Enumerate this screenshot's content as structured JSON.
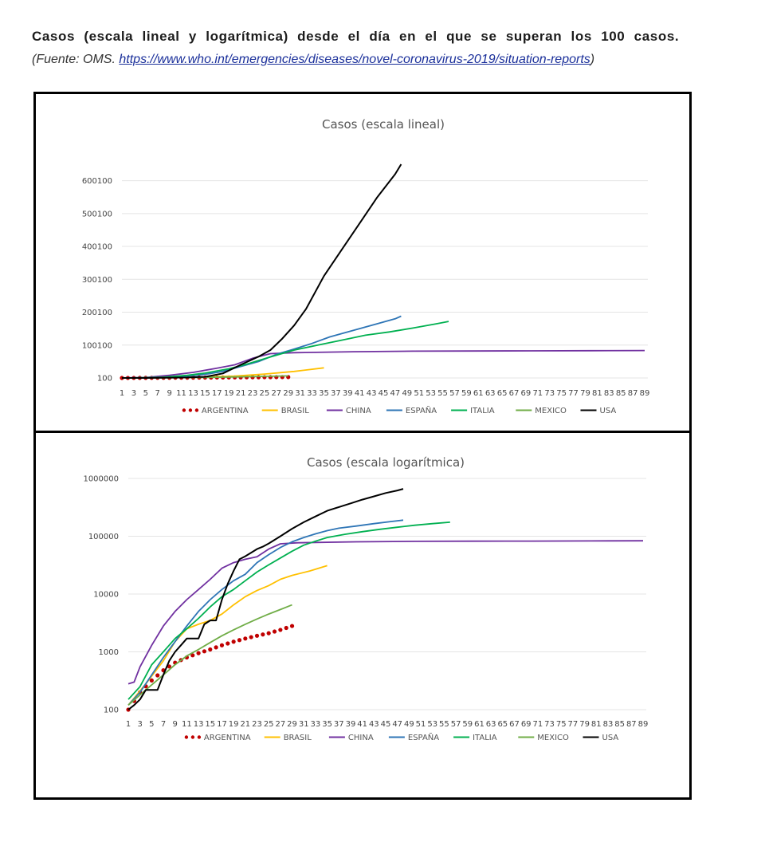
{
  "caption": {
    "title": "Casos (escala lineal y logarítmica) desde el día en el que se superan los 100 casos.",
    "source_prefix": "(Fuente: OMS. ",
    "source_link": "https://www.who.int/emergencies/diseases/novel-coronavirus-2019/situation-reports",
    "source_suffix": ")"
  },
  "colors": {
    "ARGENTINA": "#c00000",
    "BRASIL": "#ffc000",
    "CHINA": "#7030a0",
    "ESPAÑA": "#2e75b6",
    "ITALIA": "#00b050",
    "MEXICO": "#70ad47",
    "USA": "#000000"
  },
  "chart_data": [
    {
      "type": "line",
      "title": "Casos (escala lineal)",
      "x_ticks": [
        "1",
        "3",
        "5",
        "7",
        "9",
        "11",
        "13",
        "15",
        "17",
        "19",
        "21",
        "23",
        "25",
        "27",
        "29",
        "31",
        "33",
        "35",
        "37",
        "39",
        "41",
        "43",
        "45",
        "47",
        "49",
        "51",
        "53",
        "55",
        "57",
        "59",
        "61",
        "63",
        "65",
        "67",
        "69",
        "71",
        "73",
        "75",
        "77",
        "79",
        "81",
        "83",
        "85",
        "87",
        "89"
      ],
      "y_ticks": [
        "100",
        "100100",
        "200100",
        "300100",
        "400100",
        "500100",
        "600100"
      ],
      "y_tick_values": [
        100,
        100100,
        200100,
        300100,
        400100,
        500100,
        600100
      ],
      "ylim": [
        100,
        650000
      ],
      "xlim": [
        1,
        89
      ],
      "grid": true,
      "legend_position": "bottom",
      "series": [
        {
          "name": "ARGENTINA",
          "dashed": true,
          "points": [
            [
              1,
              100
            ],
            [
              10,
              800
            ],
            [
              15,
              1200
            ],
            [
              20,
              1800
            ],
            [
              25,
              2400
            ],
            [
              29,
              2800
            ]
          ]
        },
        {
          "name": "BRASIL",
          "points": [
            [
              1,
              120
            ],
            [
              10,
              1500
            ],
            [
              15,
              3000
            ],
            [
              20,
              6000
            ],
            [
              25,
              12000
            ],
            [
              30,
              20000
            ],
            [
              35,
              31000
            ]
          ]
        },
        {
          "name": "CHINA",
          "points": [
            [
              1,
              280
            ],
            [
              5,
              1500
            ],
            [
              9,
              8000
            ],
            [
              13,
              17000
            ],
            [
              17,
              30000
            ],
            [
              20,
              40000
            ],
            [
              23,
              60000
            ],
            [
              26,
              74000
            ],
            [
              30,
              77000
            ],
            [
              40,
              80000
            ],
            [
              50,
              81500
            ],
            [
              60,
              82000
            ],
            [
              70,
              82500
            ],
            [
              80,
              83000
            ],
            [
              89,
              83500
            ]
          ]
        },
        {
          "name": "ESPAÑA",
          "points": [
            [
              1,
              120
            ],
            [
              8,
              1600
            ],
            [
              12,
              6000
            ],
            [
              15,
              11000
            ],
            [
              18,
              20000
            ],
            [
              21,
              35000
            ],
            [
              24,
              50000
            ],
            [
              27,
              72000
            ],
            [
              30,
              88000
            ],
            [
              33,
              105000
            ],
            [
              36,
              125000
            ],
            [
              40,
              145000
            ],
            [
              44,
              165000
            ],
            [
              47,
              180000
            ],
            [
              48,
              188000
            ]
          ]
        },
        {
          "name": "ITALIA",
          "points": [
            [
              1,
              150
            ],
            [
              5,
              900
            ],
            [
              8,
              2500
            ],
            [
              12,
              8000
            ],
            [
              15,
              15000
            ],
            [
              19,
              28000
            ],
            [
              22,
              42000
            ],
            [
              26,
              64000
            ],
            [
              30,
              85000
            ],
            [
              34,
              100000
            ],
            [
              38,
              115000
            ],
            [
              42,
              130000
            ],
            [
              46,
              140000
            ],
            [
              50,
              152000
            ],
            [
              54,
              165000
            ],
            [
              56,
              172000
            ]
          ]
        },
        {
          "name": "MEXICO",
          "points": [
            [
              1,
              120
            ],
            [
              8,
              600
            ],
            [
              12,
              1200
            ],
            [
              16,
              2000
            ],
            [
              20,
              3200
            ],
            [
              25,
              5000
            ],
            [
              29,
              6500
            ]
          ]
        },
        {
          "name": "USA",
          "points": [
            [
              1,
              100
            ],
            [
              5,
              200
            ],
            [
              8,
              500
            ],
            [
              12,
              1600
            ],
            [
              15,
              3500
            ],
            [
              18,
              14000
            ],
            [
              21,
              40000
            ],
            [
              24,
              65000
            ],
            [
              26,
              85000
            ],
            [
              28,
              120000
            ],
            [
              30,
              160000
            ],
            [
              32,
              210000
            ],
            [
              35,
              310000
            ],
            [
              38,
              390000
            ],
            [
              41,
              470000
            ],
            [
              44,
              550000
            ],
            [
              47,
              620000
            ],
            [
              48,
              650000
            ]
          ]
        }
      ]
    },
    {
      "type": "line",
      "title": "Casos (escala logarítmica)",
      "x_ticks": [
        "1",
        "3",
        "5",
        "7",
        "9",
        "11",
        "13",
        "15",
        "17",
        "19",
        "21",
        "23",
        "25",
        "27",
        "29",
        "31",
        "33",
        "35",
        "37",
        "39",
        "41",
        "43",
        "45",
        "47",
        "49",
        "51",
        "53",
        "55",
        "57",
        "59",
        "61",
        "63",
        "65",
        "67",
        "69",
        "71",
        "73",
        "75",
        "77",
        "79",
        "81",
        "83",
        "85",
        "87",
        "89"
      ],
      "y_ticks": [
        "100",
        "1000",
        "10000",
        "100000",
        "1000000"
      ],
      "y_tick_values": [
        100,
        1000,
        10000,
        100000,
        1000000
      ],
      "y_scale": "log",
      "ylim": [
        100,
        1000000
      ],
      "xlim": [
        1,
        89
      ],
      "grid": true,
      "legend_position": "bottom",
      "series": [
        {
          "name": "ARGENTINA",
          "dashed": true,
          "points": [
            [
              1,
              100
            ],
            [
              3,
              200
            ],
            [
              5,
              320
            ],
            [
              7,
              480
            ],
            [
              9,
              650
            ],
            [
              11,
              800
            ],
            [
              13,
              950
            ],
            [
              15,
              1100
            ],
            [
              17,
              1300
            ],
            [
              19,
              1500
            ],
            [
              21,
              1700
            ],
            [
              23,
              1900
            ],
            [
              25,
              2100
            ],
            [
              27,
              2400
            ],
            [
              29,
              2800
            ]
          ]
        },
        {
          "name": "BRASIL",
          "points": [
            [
              1,
              120
            ],
            [
              4,
              280
            ],
            [
              7,
              700
            ],
            [
              9,
              1500
            ],
            [
              11,
              2500
            ],
            [
              13,
              3000
            ],
            [
              15,
              3500
            ],
            [
              17,
              4500
            ],
            [
              19,
              6500
            ],
            [
              21,
              9000
            ],
            [
              23,
              11500
            ],
            [
              25,
              14000
            ],
            [
              27,
              18000
            ],
            [
              29,
              21000
            ],
            [
              32,
              25000
            ],
            [
              35,
              31000
            ]
          ]
        },
        {
          "name": "CHINA",
          "points": [
            [
              1,
              280
            ],
            [
              2,
              300
            ],
            [
              3,
              550
            ],
            [
              5,
              1300
            ],
            [
              7,
              2800
            ],
            [
              9,
              5000
            ],
            [
              11,
              8000
            ],
            [
              13,
              12000
            ],
            [
              15,
              18000
            ],
            [
              17,
              28000
            ],
            [
              19,
              35000
            ],
            [
              21,
              40000
            ],
            [
              23,
              44000
            ],
            [
              25,
              60000
            ],
            [
              27,
              74000
            ],
            [
              30,
              77000
            ],
            [
              40,
              80000
            ],
            [
              50,
              81500
            ],
            [
              60,
              82000
            ],
            [
              70,
              82500
            ],
            [
              80,
              83000
            ],
            [
              89,
              83500
            ]
          ]
        },
        {
          "name": "ESPAÑA",
          "points": [
            [
              1,
              120
            ],
            [
              3,
              200
            ],
            [
              5,
              400
            ],
            [
              7,
              800
            ],
            [
              9,
              1500
            ],
            [
              11,
              2800
            ],
            [
              13,
              5000
            ],
            [
              15,
              8000
            ],
            [
              17,
              12000
            ],
            [
              19,
              17000
            ],
            [
              21,
              22000
            ],
            [
              23,
              35000
            ],
            [
              25,
              48000
            ],
            [
              27,
              64000
            ],
            [
              29,
              80000
            ],
            [
              31,
              95000
            ],
            [
              33,
              110000
            ],
            [
              35,
              125000
            ],
            [
              37,
              138000
            ],
            [
              40,
              150000
            ],
            [
              43,
              165000
            ],
            [
              46,
              180000
            ],
            [
              48,
              190000
            ]
          ]
        },
        {
          "name": "ITALIA",
          "points": [
            [
              1,
              150
            ],
            [
              3,
              250
            ],
            [
              5,
              600
            ],
            [
              7,
              1000
            ],
            [
              9,
              1700
            ],
            [
              11,
              2500
            ],
            [
              13,
              3800
            ],
            [
              15,
              6000
            ],
            [
              17,
              9000
            ],
            [
              19,
              12000
            ],
            [
              21,
              17000
            ],
            [
              23,
              24000
            ],
            [
              25,
              32000
            ],
            [
              27,
              42000
            ],
            [
              29,
              55000
            ],
            [
              31,
              70000
            ],
            [
              33,
              82000
            ],
            [
              35,
              95000
            ],
            [
              38,
              108000
            ],
            [
              41,
              120000
            ],
            [
              44,
              132000
            ],
            [
              47,
              143000
            ],
            [
              50,
              155000
            ],
            [
              53,
              165000
            ],
            [
              56,
              175000
            ]
          ]
        },
        {
          "name": "MEXICO",
          "points": [
            [
              1,
              120
            ],
            [
              4,
              220
            ],
            [
              7,
              400
            ],
            [
              9,
              600
            ],
            [
              11,
              850
            ],
            [
              13,
              1100
            ],
            [
              15,
              1450
            ],
            [
              17,
              1900
            ],
            [
              19,
              2400
            ],
            [
              21,
              3000
            ],
            [
              23,
              3700
            ],
            [
              25,
              4500
            ],
            [
              27,
              5400
            ],
            [
              29,
              6500
            ]
          ]
        },
        {
          "name": "USA",
          "points": [
            [
              1,
              100
            ],
            [
              2,
              120
            ],
            [
              3,
              150
            ],
            [
              4,
              220
            ],
            [
              5,
              220
            ],
            [
              6,
              220
            ],
            [
              7,
              400
            ],
            [
              8,
              700
            ],
            [
              9,
              1000
            ],
            [
              10,
              1300
            ],
            [
              11,
              1700
            ],
            [
              12,
              1700
            ],
            [
              13,
              1700
            ],
            [
              14,
              3000
            ],
            [
              15,
              3500
            ],
            [
              16,
              3500
            ],
            [
              17,
              8000
            ],
            [
              18,
              15000
            ],
            [
              19,
              25000
            ],
            [
              20,
              40000
            ],
            [
              21,
              45000
            ],
            [
              22,
              52000
            ],
            [
              23,
              60000
            ],
            [
              24,
              66000
            ],
            [
              25,
              75000
            ],
            [
              27,
              100000
            ],
            [
              29,
              135000
            ],
            [
              31,
              175000
            ],
            [
              33,
              220000
            ],
            [
              35,
              275000
            ],
            [
              37,
              320000
            ],
            [
              39,
              370000
            ],
            [
              41,
              430000
            ],
            [
              43,
              490000
            ],
            [
              45,
              560000
            ],
            [
              47,
              620000
            ],
            [
              48,
              660000
            ]
          ]
        }
      ],
      "legend_entries": [
        "ARGENTINA",
        "BRASIL",
        "CHINA",
        "ESPAÑA",
        "ITALIA",
        "MEXICO",
        "USA"
      ]
    }
  ]
}
